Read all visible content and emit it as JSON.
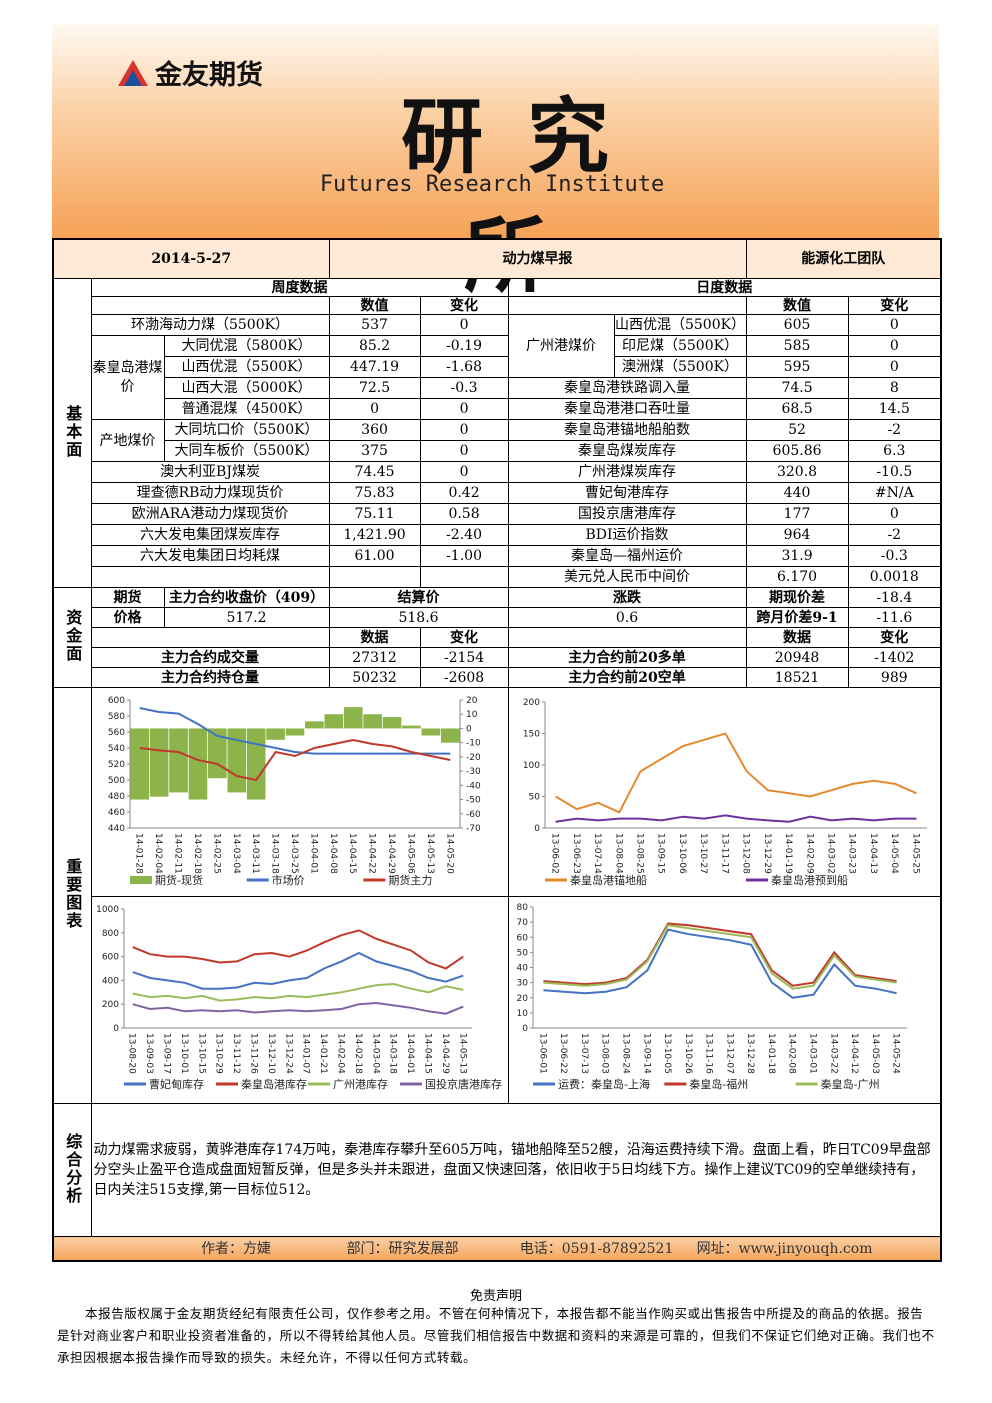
{
  "header": {
    "logo": "金友期货",
    "title": "研究所",
    "subtitle": "Futures Research Institute"
  },
  "info": {
    "date": "2014-5-27",
    "report": "动力煤早报",
    "team": "能源化工团队"
  },
  "sections": {
    "fundamentals": "基本面",
    "funds": "资金面",
    "charts": "重要图表",
    "analysis": "综合分析"
  },
  "weekly": {
    "title": "周度数据",
    "columns": [
      "数值",
      "变化"
    ],
    "groups": [
      "秦皇岛港煤价",
      "产地煤价"
    ],
    "rows": [
      {
        "name": "环渤海动力煤（5500K）",
        "value": "537",
        "change": "0"
      },
      {
        "name": "大同优混（5800K）",
        "value": "85.2",
        "change": "-0.19"
      },
      {
        "name": "山西优混（5500K）",
        "value": "447.19",
        "change": "-1.68"
      },
      {
        "name": "山西大混（5000K）",
        "value": "72.5",
        "change": "-0.3"
      },
      {
        "name": "普通混煤（4500K）",
        "value": "0",
        "change": "0"
      },
      {
        "name": "大同坑口价（5500K）",
        "value": "360",
        "change": "0"
      },
      {
        "name": "大同车板价（5500K）",
        "value": "375",
        "change": "0"
      },
      {
        "name": "澳大利亚BJ煤炭",
        "value": "74.45",
        "change": "0"
      },
      {
        "name": "理查德RB动力煤现货价",
        "value": "75.83",
        "change": "0.42"
      },
      {
        "name": "欧洲ARA港动力煤现货价",
        "value": "75.11",
        "change": "0.58"
      },
      {
        "name": "六大发电集团煤炭库存",
        "value": "1,421.90",
        "change": "-2.40"
      },
      {
        "name": "六大发电集团日均耗煤",
        "value": "61.00",
        "change": "-1.00"
      }
    ]
  },
  "daily": {
    "title": "日度数据",
    "columns": [
      "数值",
      "变化"
    ],
    "groups": [
      "广州港煤价"
    ],
    "rows": [
      {
        "name": "山西优混（5500K）",
        "value": "605",
        "change": "0"
      },
      {
        "name": "印尼煤（5500K）",
        "value": "585",
        "change": "0"
      },
      {
        "name": "澳洲煤（5500K）",
        "value": "595",
        "change": "0"
      },
      {
        "name": "秦皇岛港铁路调入量",
        "value": "74.5",
        "change": "8"
      },
      {
        "name": "秦皇岛港港口吞吐量",
        "value": "68.5",
        "change": "14.5"
      },
      {
        "name": "秦皇岛港锚地船舶数",
        "value": "52",
        "change": "-2"
      },
      {
        "name": "秦皇岛煤炭库存",
        "value": "605.86",
        "change": "6.3"
      },
      {
        "name": "广州港煤炭库存",
        "value": "320.8",
        "change": "-10.5"
      },
      {
        "name": "曹妃甸港库存",
        "value": "440",
        "change": "#N/A"
      },
      {
        "name": "国投京唐港库存",
        "value": "177",
        "change": "0"
      },
      {
        "name": "BDI运价指数",
        "value": "964",
        "change": "-2"
      },
      {
        "name": "秦皇岛—福州运价",
        "value": "31.9",
        "change": "-0.3"
      },
      {
        "name": "美元兑人民币中间价",
        "value": "6.170",
        "change": "0.0018"
      }
    ]
  },
  "funds": {
    "futures_label": [
      "期货",
      "价格"
    ],
    "price_headers": [
      "主力合约收盘价（409）",
      "结算价",
      "涨跌"
    ],
    "prices": [
      "517.2",
      "518.6",
      "0.6"
    ],
    "spreads": [
      {
        "name": "期现价差",
        "value": "-18.4"
      },
      {
        "name": "跨月价差9-1",
        "value": "-11.6"
      }
    ],
    "columns": [
      "数据",
      "变化",
      "数据",
      "变化"
    ],
    "rows": [
      [
        {
          "name": "主力合约成交量",
          "value": "27312",
          "change": "-2154"
        },
        {
          "name": "主力合约前20多单",
          "value": "20948",
          "change": "-1402"
        }
      ],
      [
        {
          "name": "主力合约持仓量",
          "value": "50232",
          "change": "-2608"
        },
        {
          "name": "主力合约前20空单",
          "value": "18521",
          "change": "989"
        }
      ]
    ]
  },
  "charts": [
    {
      "type": "line",
      "categories": [
        "14-01-28",
        "14-02-04",
        "14-02-11",
        "14-02-18",
        "14-02-25",
        "14-03-04",
        "14-03-11",
        "14-03-18",
        "14-03-25",
        "14-04-01",
        "14-04-08",
        "14-04-15",
        "14-04-22",
        "14-04-29",
        "14-05-06",
        "14-05-13",
        "14-05-20"
      ],
      "ylim": [
        440,
        600
      ],
      "yticks": [
        440,
        460,
        480,
        500,
        520,
        540,
        560,
        580,
        600
      ],
      "y2lim": [
        -70,
        20
      ],
      "y2ticks": [
        -70,
        -60,
        -50,
        -40,
        -30,
        -20,
        -10,
        0,
        10,
        20
      ],
      "series": [
        {
          "name": "期货-现货",
          "type": "bar",
          "axis": "y2",
          "color": "#8db44a",
          "values": [
            -50,
            -48,
            -45,
            -50,
            -35,
            -45,
            -50,
            -8,
            -5,
            5,
            10,
            15,
            10,
            8,
            2,
            -5,
            -10
          ]
        },
        {
          "name": "市场价",
          "type": "line",
          "color": "#4472c4",
          "values": [
            590,
            585,
            583,
            570,
            555,
            550,
            545,
            540,
            535,
            533,
            533,
            533,
            533,
            533,
            533,
            533,
            533
          ]
        },
        {
          "name": "期货主力",
          "type": "line",
          "color": "#c0392b",
          "values": [
            540,
            537,
            535,
            525,
            520,
            505,
            500,
            535,
            530,
            540,
            545,
            550,
            545,
            542,
            535,
            530,
            525
          ]
        }
      ]
    },
    {
      "type": "line",
      "categories": [
        "13-06-02",
        "13-06-23",
        "13-07-14",
        "13-08-04",
        "13-08-25",
        "13-09-15",
        "13-10-06",
        "13-10-27",
        "13-11-17",
        "13-12-08",
        "13-12-29",
        "14-01-19",
        "14-02-09",
        "14-03-02",
        "14-03-23",
        "14-04-13",
        "14-05-04",
        "14-05-25"
      ],
      "ylim": [
        0,
        200
      ],
      "yticks": [
        0,
        50,
        100,
        150,
        200
      ],
      "series": [
        {
          "name": "秦皇岛港锚地船",
          "type": "line",
          "color": "#e5892e",
          "values": [
            50,
            30,
            40,
            25,
            90,
            110,
            130,
            140,
            150,
            90,
            60,
            55,
            50,
            60,
            70,
            75,
            70,
            55
          ]
        },
        {
          "name": "秦皇岛港预到船",
          "type": "line",
          "color": "#7030a0",
          "values": [
            10,
            15,
            12,
            15,
            15,
            12,
            18,
            15,
            20,
            15,
            12,
            10,
            18,
            12,
            15,
            12,
            15,
            15
          ]
        }
      ]
    },
    {
      "type": "line",
      "categories": [
        "13-08-20",
        "13-09-03",
        "13-09-17",
        "13-10-01",
        "13-10-15",
        "13-10-29",
        "13-11-12",
        "13-11-26",
        "13-12-10",
        "13-12-24",
        "14-01-07",
        "14-01-21",
        "14-02-04",
        "14-02-18",
        "14-03-04",
        "14-03-18",
        "14-04-01",
        "14-04-15",
        "14-04-29",
        "14-05-13"
      ],
      "ylim": [
        0,
        1000
      ],
      "yticks": [
        0,
        200,
        400,
        600,
        800,
        1000
      ],
      "series": [
        {
          "name": "曹妃甸库存",
          "type": "line",
          "color": "#4472c4",
          "values": [
            470,
            420,
            400,
            380,
            330,
            330,
            340,
            380,
            370,
            400,
            420,
            500,
            560,
            630,
            560,
            520,
            480,
            420,
            390,
            440
          ]
        },
        {
          "name": "秦皇岛港库存",
          "type": "line",
          "color": "#c0392b",
          "values": [
            680,
            620,
            600,
            600,
            580,
            550,
            560,
            620,
            630,
            600,
            650,
            720,
            780,
            820,
            750,
            700,
            650,
            550,
            500,
            600
          ]
        },
        {
          "name": "广州港库存",
          "type": "line",
          "color": "#9bbb59",
          "values": [
            290,
            260,
            270,
            250,
            270,
            230,
            240,
            260,
            250,
            270,
            260,
            280,
            300,
            330,
            360,
            370,
            330,
            300,
            350,
            320
          ]
        },
        {
          "name": "国投京唐港库存",
          "type": "line",
          "color": "#8064a2",
          "values": [
            200,
            160,
            170,
            140,
            150,
            140,
            150,
            130,
            140,
            150,
            140,
            150,
            160,
            200,
            210,
            190,
            170,
            140,
            120,
            180
          ]
        }
      ]
    },
    {
      "type": "line",
      "categories": [
        "13-06-01",
        "13-06-22",
        "13-07-13",
        "13-08-03",
        "13-08-24",
        "13-09-14",
        "13-10-05",
        "13-10-26",
        "13-11-16",
        "13-12-07",
        "13-12-28",
        "14-01-18",
        "14-02-08",
        "14-03-01",
        "14-03-22",
        "14-04-12",
        "14-05-03",
        "14-05-24"
      ],
      "ylim": [
        0,
        80
      ],
      "yticks": [
        0,
        10,
        20,
        30,
        40,
        50,
        60,
        70,
        80
      ],
      "series": [
        {
          "name": "运费：秦皇岛-上海",
          "type": "line",
          "color": "#4472c4",
          "values": [
            25,
            24,
            23,
            24,
            27,
            38,
            65,
            62,
            60,
            58,
            55,
            30,
            20,
            22,
            42,
            28,
            26,
            23
          ]
        },
        {
          "name": "秦皇岛-福州",
          "type": "line",
          "color": "#c0392b",
          "values": [
            31,
            30,
            29,
            30,
            33,
            45,
            69,
            68,
            66,
            64,
            62,
            38,
            28,
            30,
            50,
            35,
            33,
            31
          ]
        },
        {
          "name": "秦皇岛-广州",
          "type": "line",
          "color": "#9bbb59",
          "values": [
            30,
            29,
            28,
            29,
            32,
            44,
            68,
            66,
            64,
            62,
            60,
            36,
            26,
            28,
            48,
            34,
            32,
            30
          ]
        }
      ]
    }
  ],
  "analysis": "动力煤需求疲弱，黄骅港库存174万吨，秦港库存攀升至605万吨，锚地船降至52艘，沿海运费持续下滑。盘面上看，昨日TC09早盘部分空头止盈平仓造成盘面短暂反弹，但是多头并未跟进，盘面又快速回落，依旧收于5日均线下方。操作上建议TC09的空单继续持有，日内关注515支撑,第一目标位512。",
  "footer": {
    "author": "作者：方婕",
    "department": "部门：研究发展部",
    "phone": "电话：0591-87892521",
    "website": "网址：www.jinyouqh.com"
  },
  "disclaimer": {
    "title": "免责声明",
    "body": "本报告版权属于金友期货经纪有限责任公司，仅作参考之用。不管在何种情况下，本报告都不能当作购买或出售报告中所提及的商品的依据。报告是针对商业客户和职业投资者准备的，所以不得转给其他人员。尽管我们相信报告中数据和资料的来源是可靠的，但我们不保证它们绝对正确。我们也不承担因根据本报告操作而导致的损失。未经允许，不得以任何方式转载。"
  }
}
